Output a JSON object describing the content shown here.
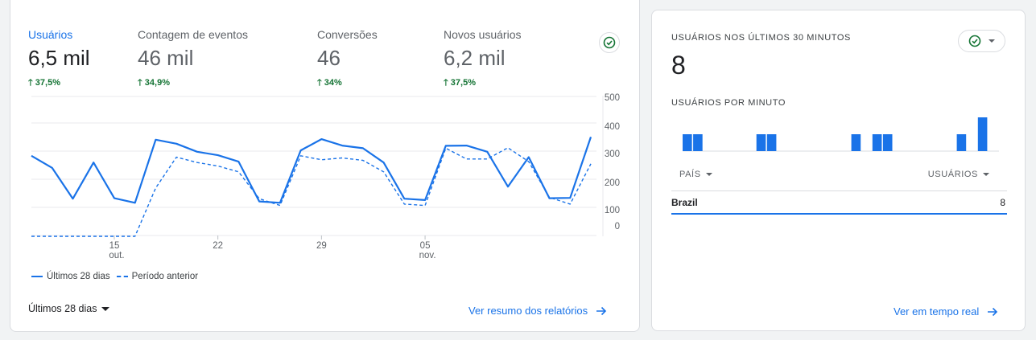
{
  "overview": {
    "metrics": [
      {
        "label": "Usuários",
        "value": "6,5 mil",
        "change": "37,5%"
      },
      {
        "label": "Contagem de eventos",
        "value": "46 mil",
        "change": "34,9%"
      },
      {
        "label": "Conversões",
        "value": "46",
        "change": "34%"
      },
      {
        "label": "Novos usuários",
        "value": "6,2 mil",
        "change": "37,5%"
      }
    ],
    "legend": {
      "current": "Últimos 28 dias",
      "previous": "Período anterior"
    },
    "date_range": "Últimos 28 dias",
    "link": "Ver resumo dos relatórios",
    "colors": {
      "accent": "#1a73e8",
      "positive": "#137333"
    }
  },
  "chart_data": {
    "type": "line",
    "y_ticks": [
      "500",
      "400",
      "300",
      "200",
      "100",
      "0"
    ],
    "ylim": [
      0,
      500
    ],
    "x_ticks": [
      {
        "index": 4,
        "label": "15",
        "sub": "out."
      },
      {
        "index": 9,
        "label": "22",
        "sub": ""
      },
      {
        "index": 14,
        "label": "29",
        "sub": ""
      },
      {
        "index": 19,
        "label": "05",
        "sub": "nov."
      }
    ],
    "grid": true,
    "legend_position": "bottom-left",
    "series": [
      {
        "name": "Últimos 28 dias",
        "values": [
          300,
          255,
          140,
          275,
          142,
          125,
          360,
          345,
          315,
          302,
          278,
          130,
          125,
          320,
          362,
          338,
          328,
          275,
          140,
          135,
          337,
          338,
          315,
          185,
          295,
          142,
          143,
          370
        ]
      },
      {
        "name": "Período anterior",
        "values": [
          0,
          0,
          0,
          0,
          0,
          0,
          180,
          295,
          275,
          262,
          240,
          140,
          115,
          300,
          285,
          292,
          283,
          240,
          120,
          115,
          328,
          288,
          288,
          330,
          278,
          145,
          120,
          270
        ]
      }
    ]
  },
  "realtime": {
    "heading": "USUÁRIOS NOS ÚLTIMOS 30 MINUTOS",
    "count": "8",
    "per_minute_label": "USUÁRIOS POR MINUTO",
    "per_minute": [
      1,
      1,
      0,
      0,
      0,
      0,
      0,
      1,
      1,
      0,
      0,
      0,
      0,
      0,
      0,
      0,
      1,
      0,
      1,
      1,
      0,
      0,
      0,
      0,
      0,
      0,
      1,
      0,
      2,
      0
    ],
    "table": {
      "col_country": "PAÍS",
      "col_users": "USUÁRIOS",
      "rows": [
        {
          "country": "Brazil",
          "users": "8"
        }
      ]
    },
    "link": "Ver em tempo real"
  }
}
